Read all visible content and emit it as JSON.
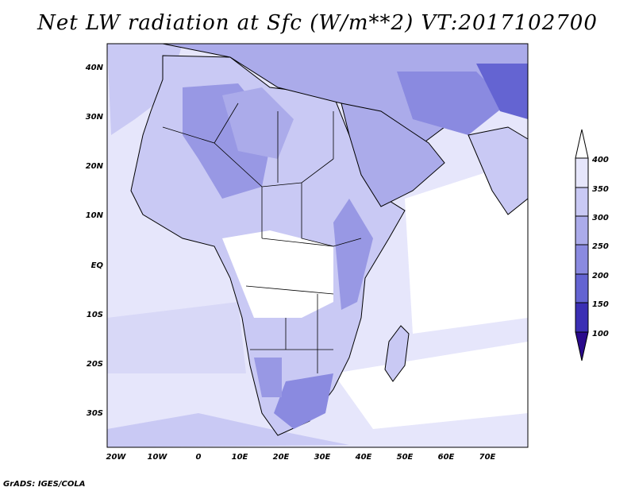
{
  "title": "Net LW radiation at Sfc (W/m**2) VT:2017102700",
  "credit": "GrADS: IGES/COLA",
  "lat_labels": [
    "40N",
    "30N",
    "20N",
    "10N",
    "EQ",
    "10S",
    "20S",
    "30S"
  ],
  "lon_labels": [
    "20W",
    "10W",
    "0",
    "10E",
    "20E",
    "30E",
    "40E",
    "50E",
    "60E",
    "70E"
  ],
  "colorbar": {
    "labels": [
      "400",
      "350",
      "300",
      "250",
      "200",
      "150",
      "100"
    ],
    "colors": [
      "#ffffff",
      "#e6e6fb",
      "#c9c9f4",
      "#ababea",
      "#8a8ae0",
      "#6464d2",
      "#3b2fb4",
      "#2a0a8c"
    ]
  },
  "colors": {
    "land_dark": "#8a8ae0",
    "land_mid": "#ababea",
    "land_light": "#c9c9f4",
    "ocean": "#e6e6fb"
  }
}
